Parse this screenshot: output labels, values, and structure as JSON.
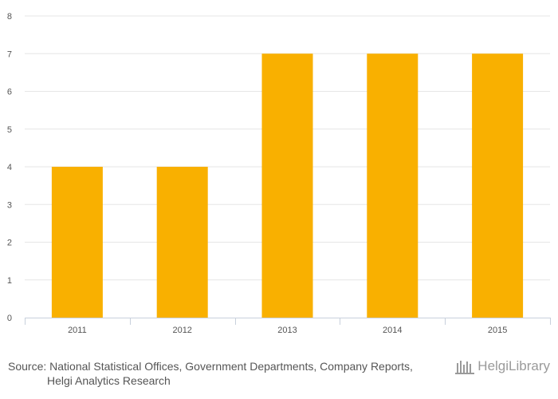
{
  "chart_data": {
    "type": "bar",
    "categories": [
      "2011",
      "2012",
      "2013",
      "2014",
      "2015"
    ],
    "values": [
      4,
      4,
      7,
      7,
      7
    ],
    "title": "",
    "xlabel": "",
    "ylabel": "",
    "ylim": [
      0,
      8
    ],
    "yticks": [
      "0",
      "1",
      "2",
      "3",
      "4",
      "5",
      "6",
      "7",
      "8"
    ],
    "grid": true,
    "bar_color": "#F9B000"
  },
  "source": {
    "prefix": "Source:",
    "line1": "National Statistical Offices, Government Departments, Company Reports,",
    "line2": "Helgi Analytics Research"
  },
  "logo": {
    "text": "HelgiLibrary"
  }
}
